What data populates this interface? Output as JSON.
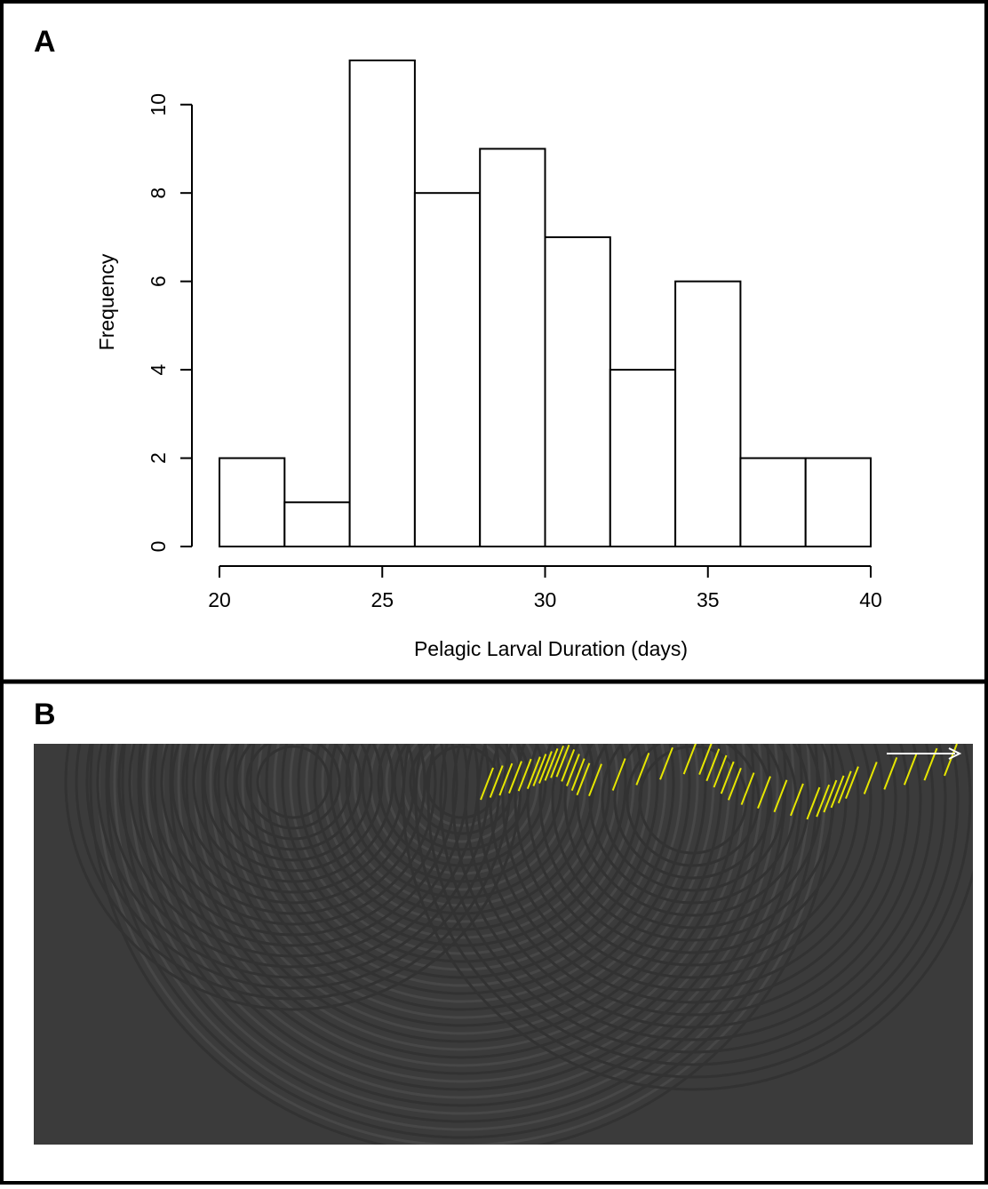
{
  "panels": {
    "a": {
      "label": "A"
    },
    "b": {
      "label": "B"
    }
  },
  "chart_data": {
    "type": "histogram",
    "bins": [
      20,
      22,
      24,
      26,
      28,
      30,
      32,
      34,
      36,
      38,
      40
    ],
    "values": [
      2,
      1,
      11,
      8,
      9,
      7,
      4,
      6,
      2,
      2
    ],
    "color": "#ffffff",
    "x_label": "Pelagic Larval Duration (days)",
    "y_label": "Frequency",
    "xlim": [
      20,
      40
    ],
    "xticks": [
      20,
      25,
      30,
      35,
      40
    ],
    "ylim": [
      0,
      11
    ],
    "yticks": [
      0,
      2,
      4,
      6,
      8,
      10
    ]
  }
}
